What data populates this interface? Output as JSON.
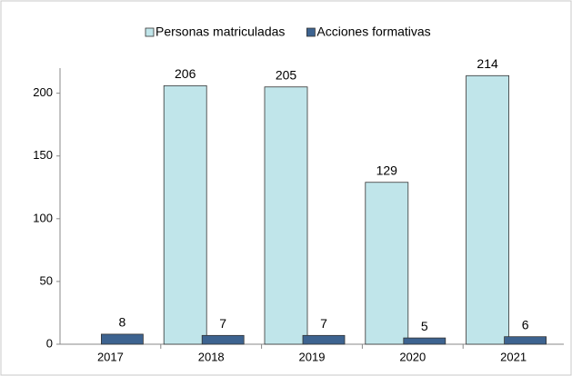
{
  "chart_data": {
    "type": "bar",
    "categories": [
      "2017",
      "2018",
      "2019",
      "2020",
      "2021"
    ],
    "series": [
      {
        "name": "Personas matriculadas",
        "color": "#c0e5ea",
        "values": [
          null,
          206,
          205,
          129,
          214
        ]
      },
      {
        "name": "Acciones formativas",
        "color": "#3d6390",
        "values": [
          8,
          7,
          7,
          5,
          6
        ]
      }
    ],
    "ylim": [
      0,
      220
    ],
    "yticks": [
      0,
      50,
      100,
      150,
      200
    ],
    "grid": false,
    "legend": "top"
  }
}
